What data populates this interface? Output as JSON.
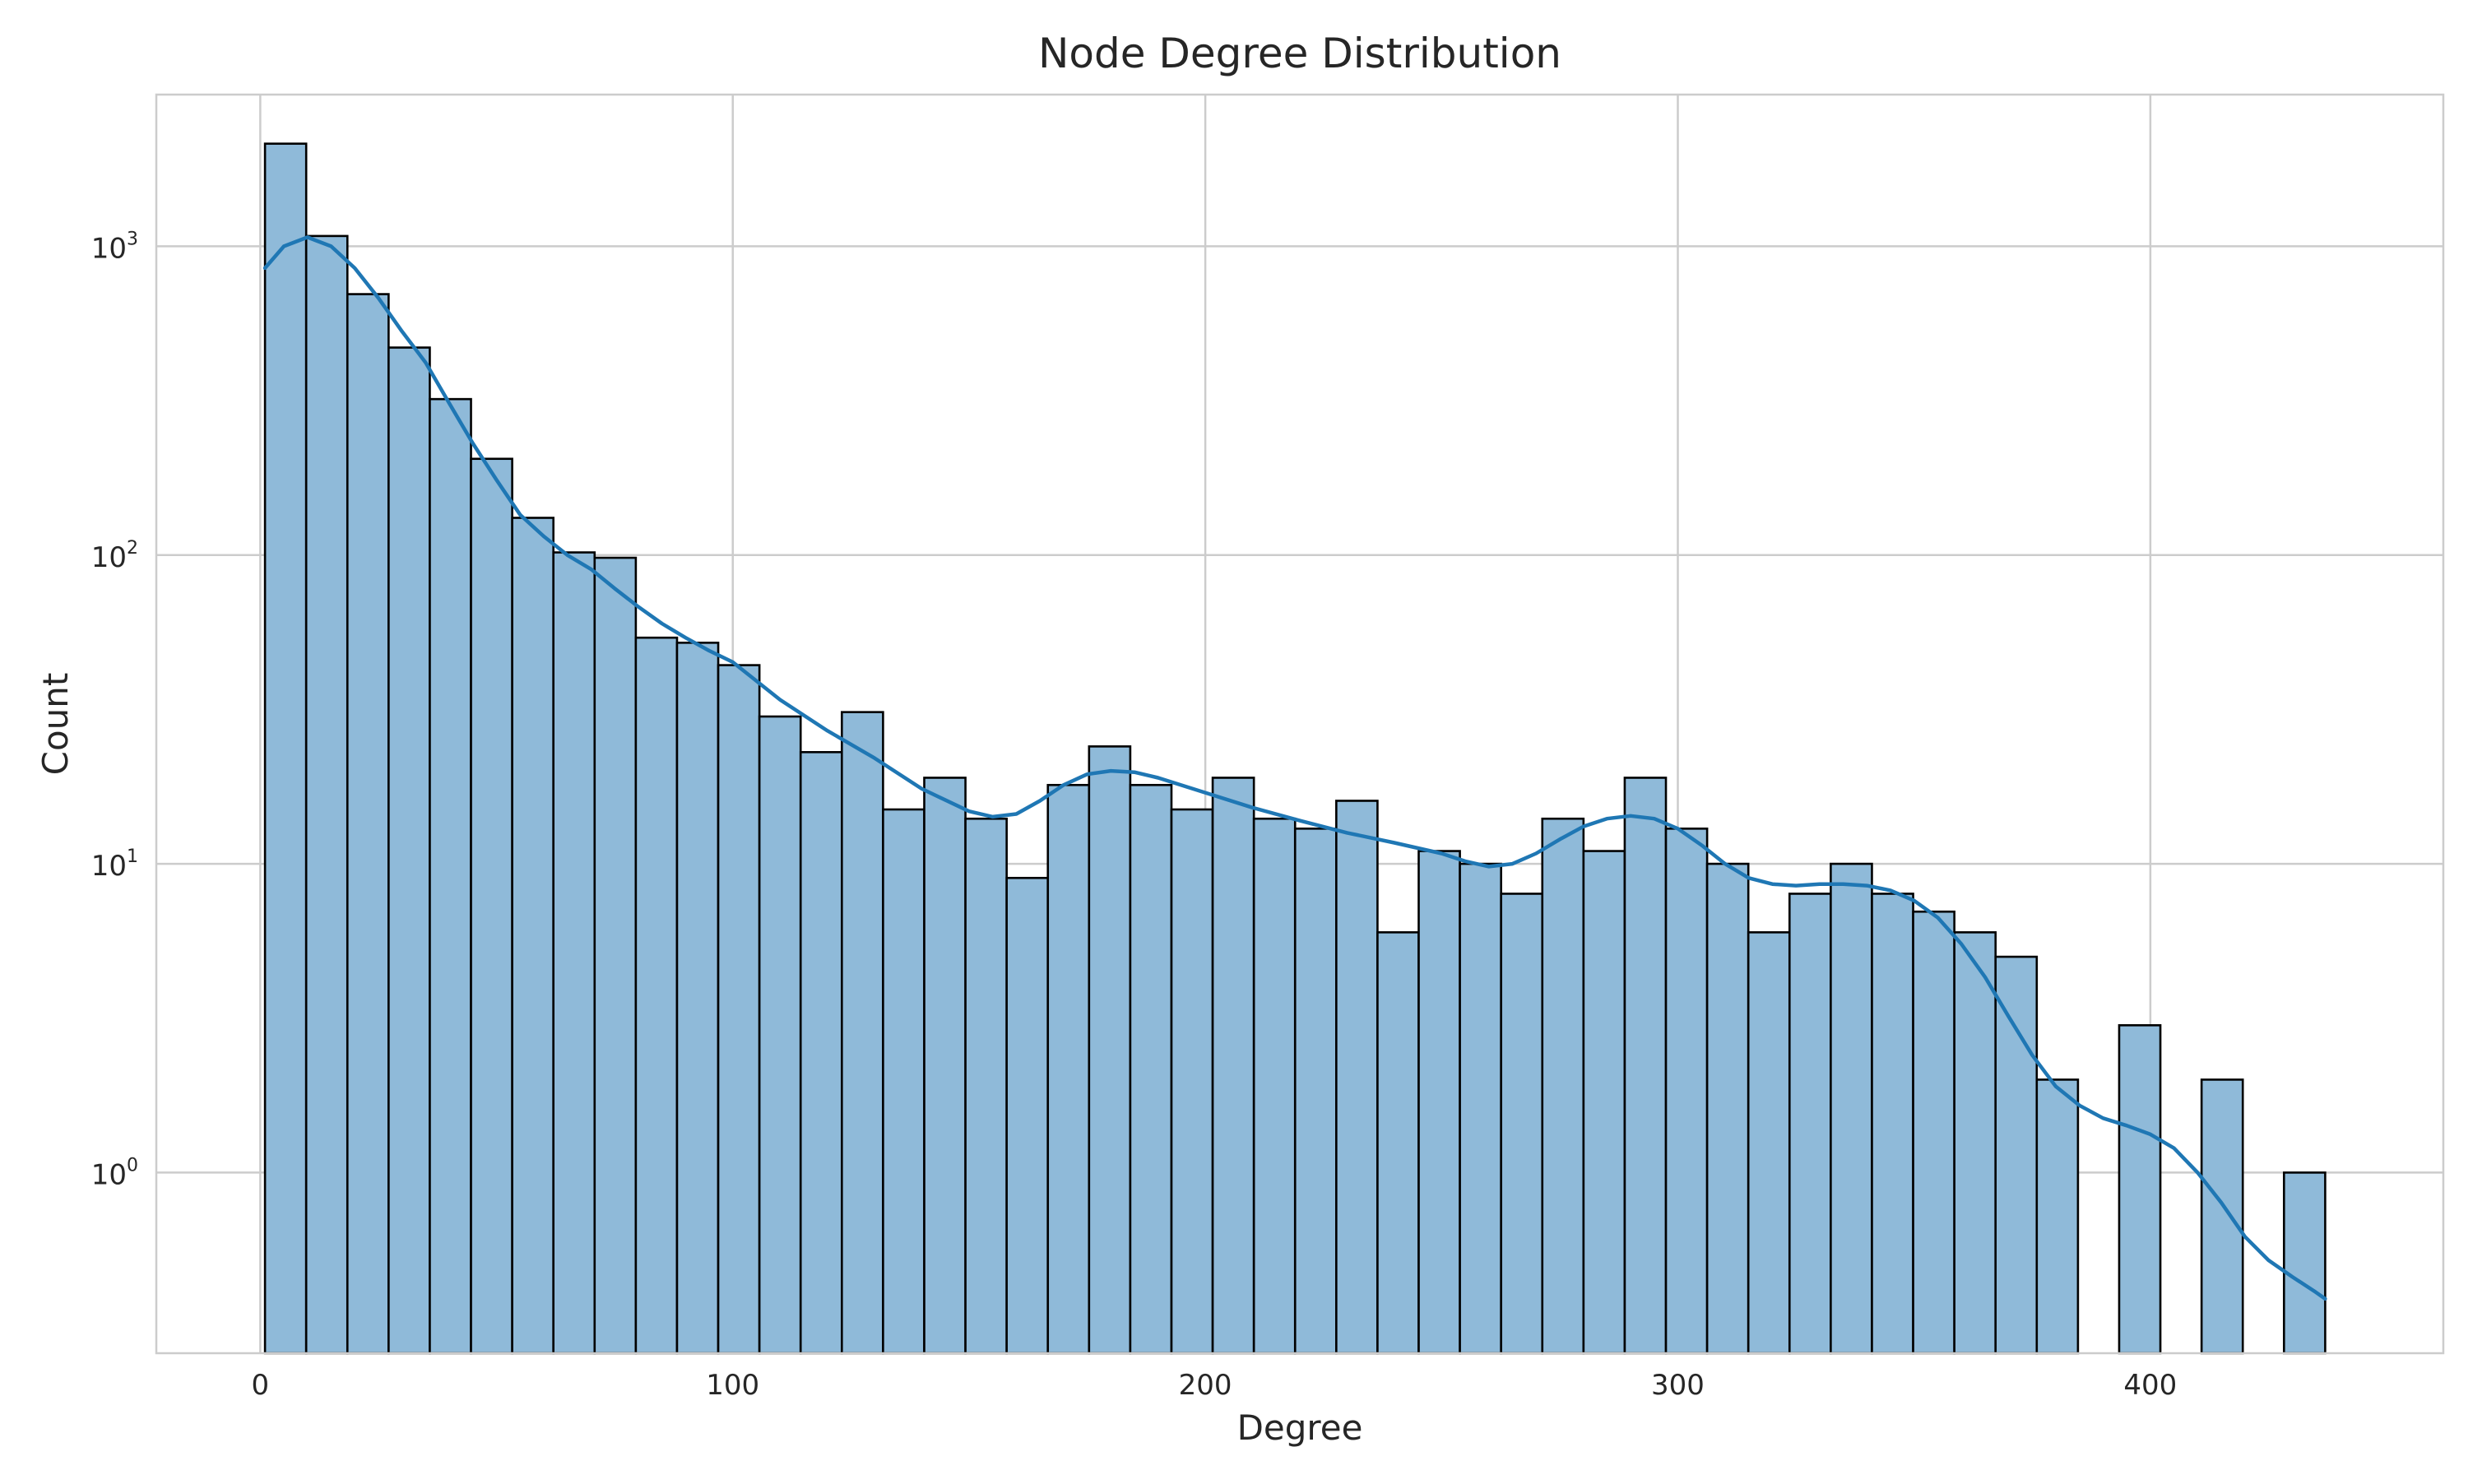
{
  "chart_data": {
    "type": "bar",
    "title": "Node Degree Distribution",
    "xlabel": "Degree",
    "ylabel": "Count",
    "y_scale": "log",
    "x_ticks": [
      0,
      100,
      200,
      300,
      400
    ],
    "x_tick_labels": [
      "0",
      "100",
      "200",
      "300",
      "400"
    ],
    "y_ticks": [
      1,
      10,
      100,
      1000
    ],
    "y_tick_base": "10",
    "y_tick_exponents": [
      "0",
      "1",
      "2",
      "3"
    ],
    "xlim": [
      -22,
      462
    ],
    "ylim": [
      0.26,
      3100
    ],
    "grid": true,
    "bin_start": 1,
    "bin_width": 8.72,
    "bar_counts": [
      2150,
      1080,
      700,
      470,
      320,
      205,
      132,
      102,
      98,
      54,
      52,
      44,
      30,
      23,
      31,
      15,
      19,
      14,
      9,
      18,
      24,
      18,
      15,
      19,
      14,
      13,
      16,
      6,
      11,
      10,
      8,
      14,
      11,
      19,
      13,
      10,
      6,
      8,
      10,
      8,
      7,
      6,
      5,
      2,
      0,
      3,
      0,
      2,
      0,
      1
    ],
    "kde": {
      "x": [
        1,
        5,
        10,
        15,
        20,
        25,
        30,
        35,
        40,
        45,
        50,
        55,
        60,
        65,
        70,
        75,
        80,
        85,
        90,
        95,
        100,
        110,
        120,
        130,
        140,
        150,
        155,
        160,
        165,
        170,
        175,
        180,
        185,
        190,
        200,
        210,
        220,
        230,
        240,
        250,
        255,
        260,
        265,
        270,
        275,
        280,
        285,
        290,
        295,
        300,
        305,
        310,
        315,
        320,
        325,
        330,
        335,
        340,
        345,
        350,
        355,
        360,
        365,
        370,
        375,
        380,
        385,
        390,
        395,
        400,
        405,
        410,
        415,
        420,
        425,
        430,
        435,
        437
      ],
      "y": [
        850,
        1000,
        1070,
        1000,
        850,
        680,
        530,
        420,
        310,
        230,
        175,
        135,
        115,
        100,
        90,
        78,
        68,
        60,
        54,
        49,
        45,
        34,
        27,
        22,
        17.5,
        14.8,
        14.2,
        14.5,
        16,
        18,
        19.5,
        20,
        19.8,
        19,
        17,
        15.2,
        13.8,
        12.6,
        11.7,
        10.8,
        10.2,
        9.8,
        10,
        10.8,
        12,
        13.2,
        14,
        14.3,
        14,
        13,
        11.5,
        10,
        9,
        8.6,
        8.5,
        8.6,
        8.6,
        8.5,
        8.2,
        7.6,
        6.7,
        5.5,
        4.3,
        3.2,
        2.4,
        1.9,
        1.65,
        1.5,
        1.42,
        1.33,
        1.2,
        1.0,
        0.8,
        0.62,
        0.52,
        0.46,
        0.41,
        0.39
      ]
    },
    "colors": {
      "bar_fill": "#8fbad9",
      "bar_edge": "#000000",
      "kde_line": "#1f77b4",
      "grid": "#cccccc",
      "spine": "#cccccc",
      "text": "#262626"
    }
  }
}
